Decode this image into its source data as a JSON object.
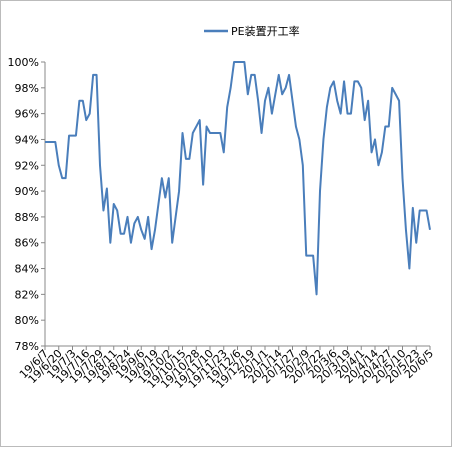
{
  "chart_data": {
    "type": "line",
    "series": [
      {
        "name": "PE装置开工率",
        "color": "#4a7ebb",
        "values": [
          93.8,
          93.8,
          93.8,
          93.8,
          92,
          91,
          91,
          94.3,
          94.3,
          94.3,
          97,
          97,
          95.5,
          96,
          99,
          99,
          92,
          88.5,
          90.2,
          86,
          89,
          88.5,
          86.7,
          86.7,
          88,
          86,
          87.5,
          88,
          87,
          86.3,
          88,
          85.5,
          87,
          89,
          91,
          89.5,
          91,
          86,
          88,
          90,
          94.5,
          92.5,
          92.5,
          94.5,
          95,
          95.5,
          90.5,
          95,
          94.5,
          94.5,
          94.5,
          94.5,
          93,
          96.5,
          98,
          100,
          100,
          100,
          100,
          97.5,
          99,
          99,
          97,
          94.5,
          97,
          98,
          96,
          97.5,
          99,
          97.5,
          98,
          99,
          97,
          95,
          94,
          92,
          85,
          85,
          85,
          82,
          90,
          94,
          96.5,
          98,
          98.5,
          97,
          96,
          98.5,
          96,
          96,
          98.5,
          98.5,
          98,
          95.5,
          97,
          93,
          94,
          92,
          93,
          95,
          95,
          98,
          97.5,
          97,
          91,
          87,
          84,
          88.7,
          86,
          88.5,
          88.5,
          88.5,
          87
        ]
      }
    ],
    "categories": [
      "19/6/7",
      null,
      null,
      null,
      "19/6/20",
      null,
      null,
      null,
      "19/7/3",
      null,
      null,
      null,
      "19/7/16",
      null,
      null,
      null,
      "19/7/29",
      null,
      null,
      null,
      "19/8/11",
      null,
      null,
      null,
      "19/8/24",
      null,
      null,
      null,
      "19/9/6",
      null,
      null,
      null,
      "19/9/19",
      null,
      null,
      null,
      "19/10/2",
      null,
      null,
      null,
      "19/10/15",
      null,
      null,
      null,
      "19/10/28",
      null,
      null,
      null,
      "19/11/10",
      null,
      null,
      null,
      "19/11/23",
      null,
      null,
      null,
      "19/12/6",
      null,
      null,
      null,
      "19/12/19",
      null,
      null,
      null,
      "20/1/1",
      null,
      null,
      null,
      "20/1/14",
      null,
      null,
      null,
      "20/1/27",
      null,
      null,
      null,
      "20/2/9",
      null,
      null,
      null,
      "20/2/22",
      null,
      null,
      null,
      "20/3/6",
      null,
      null,
      null,
      "20/3/19",
      null,
      null,
      null,
      "20/4/1",
      null,
      null,
      null,
      "20/4/14",
      null,
      null,
      null,
      "20/4/27",
      null,
      null,
      null,
      "20/5/10",
      null,
      null,
      null,
      "20/5/23",
      null,
      null,
      null,
      "20/6/5"
    ],
    "ylim": [
      78,
      100
    ],
    "yticks": [
      {
        "value": 78,
        "label": "78%"
      },
      {
        "value": 80,
        "label": "80%"
      },
      {
        "value": 82,
        "label": "82%"
      },
      {
        "value": 84,
        "label": "84%"
      },
      {
        "value": 86,
        "label": "86%"
      },
      {
        "value": 88,
        "label": "88%"
      },
      {
        "value": 90,
        "label": "90%"
      },
      {
        "value": 92,
        "label": "92%"
      },
      {
        "value": 94,
        "label": "94%"
      },
      {
        "value": 96,
        "label": "96%"
      },
      {
        "value": 98,
        "label": "98%"
      },
      {
        "value": 100,
        "label": "100%"
      }
    ],
    "legend": "top"
  }
}
